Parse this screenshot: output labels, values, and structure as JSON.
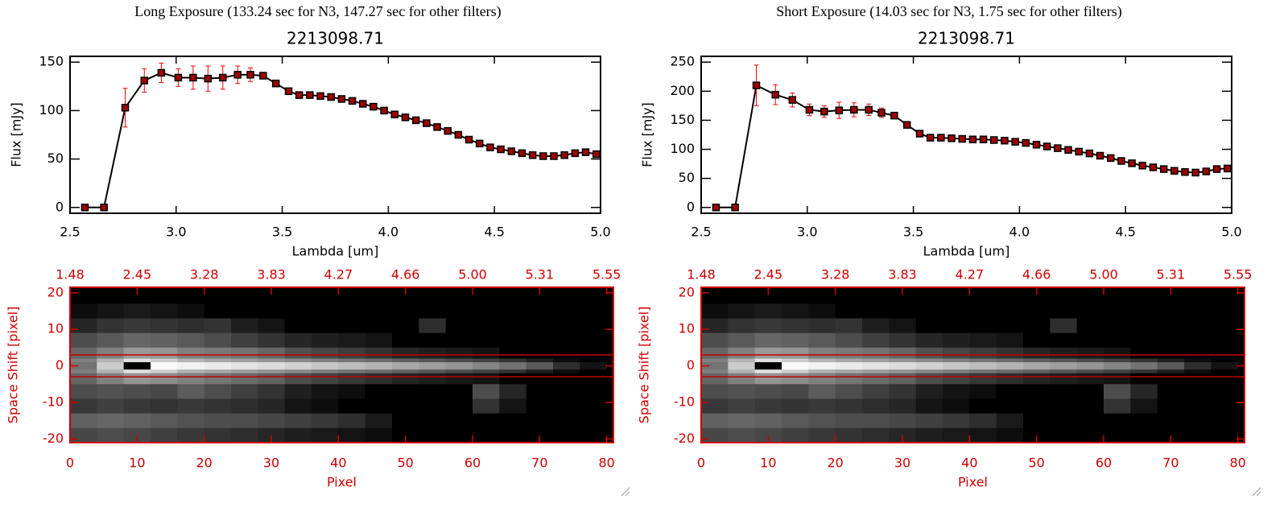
{
  "panel_titles": [
    "Long Exposure (133.24 sec for N3, 147.27 sec for other filters)",
    "Short Exposure (14.03 sec for N3, 1.75 sec for other filters)"
  ],
  "chart_data": [
    {
      "type": "line",
      "title": "2213098.71",
      "xlabel": "Lambda [um]",
      "ylabel": "Flux [mJy]",
      "color": "#000000",
      "marker_color": "#a00000",
      "error_color": "#ff0000",
      "xlim": [
        2.5,
        5.0
      ],
      "xticks": [
        2.5,
        {
          "value": 3,
          "label": "3.0"
        },
        3.5,
        {
          "value": 4,
          "label": "4.0"
        },
        4.5,
        {
          "value": 5,
          "label": "5.0"
        }
      ],
      "ylim": [
        -6,
        156
      ],
      "yticks": [
        0,
        50,
        100,
        150
      ],
      "x": [
        2.57,
        2.66,
        2.76,
        2.85,
        2.93,
        3.01,
        3.08,
        3.15,
        3.22,
        3.29,
        3.35,
        3.41,
        3.47,
        3.53,
        3.58,
        3.63,
        3.68,
        3.73,
        3.78,
        3.83,
        3.88,
        3.93,
        3.98,
        4.03,
        4.08,
        4.13,
        4.18,
        4.23,
        4.28,
        4.33,
        4.38,
        4.43,
        4.48,
        4.53,
        4.58,
        4.63,
        4.68,
        4.73,
        4.78,
        4.83,
        4.88,
        4.93,
        4.98
      ],
      "values": [
        0,
        0,
        103,
        131,
        139,
        134,
        134,
        133,
        134,
        137,
        137,
        136,
        128,
        120,
        116,
        116,
        115,
        114,
        112,
        110,
        107,
        104,
        100,
        96,
        93,
        90,
        87,
        83,
        79,
        75,
        70,
        66,
        62,
        60,
        58,
        56,
        54,
        53,
        53,
        54,
        56,
        57,
        55
      ],
      "errors": [
        0,
        0,
        20,
        12,
        10,
        9,
        12,
        13,
        12,
        9,
        7,
        3,
        2,
        2,
        2,
        2,
        2,
        2,
        2,
        2,
        2,
        2,
        2,
        2,
        2,
        2,
        2,
        2,
        2,
        2,
        2,
        2,
        2,
        2,
        2,
        2,
        2,
        2,
        2,
        2,
        2,
        2,
        2
      ]
    },
    {
      "type": "heatmap",
      "xlabel": "Pixel",
      "ylabel": "Space Shift [pixel]",
      "axis_color": "#d00000",
      "line_color": "#c00000",
      "xlim": [
        0,
        81
      ],
      "xticks": [
        0,
        10,
        20,
        30,
        40,
        50,
        60,
        70,
        80
      ],
      "x2ticks": [
        {
          "value": 0,
          "label": "1.48"
        },
        {
          "value": 10,
          "label": "2.45"
        },
        {
          "value": 20,
          "label": "3.28"
        },
        {
          "value": 30,
          "label": "3.83"
        },
        {
          "value": 40,
          "label": "4.27"
        },
        {
          "value": 50,
          "label": "4.66"
        },
        {
          "value": 60,
          "label": "5.00"
        },
        {
          "value": 70,
          "label": "5.31"
        },
        {
          "value": 80,
          "label": "5.55"
        }
      ],
      "ylim": [
        -21,
        21.5
      ],
      "yticks": [
        -20,
        -10,
        0,
        10,
        20
      ],
      "hlines": [
        3,
        -3
      ],
      "zlim": [
        0,
        100
      ],
      "xbins": [
        0,
        4,
        8,
        12,
        16,
        20,
        24,
        28,
        32,
        36,
        40,
        44,
        48,
        52,
        56,
        60,
        64,
        68,
        72,
        76,
        80
      ],
      "ybins": [
        21.5,
        17,
        13,
        9,
        5,
        2,
        1,
        -1,
        -2,
        -5,
        -9,
        -13,
        -17,
        -21
      ],
      "z": [
        [
          0,
          0,
          0,
          0,
          0,
          0,
          0,
          0,
          0,
          0,
          0,
          0,
          0,
          0,
          0,
          0,
          0,
          0,
          0,
          0
        ],
        [
          5,
          8,
          10,
          8,
          5,
          0,
          0,
          0,
          0,
          0,
          0,
          0,
          0,
          0,
          0,
          0,
          0,
          0,
          0,
          0
        ],
        [
          15,
          20,
          22,
          20,
          18,
          20,
          12,
          8,
          0,
          0,
          0,
          0,
          0,
          18,
          0,
          0,
          0,
          0,
          0,
          0
        ],
        [
          30,
          35,
          40,
          38,
          35,
          30,
          25,
          20,
          15,
          12,
          10,
          8,
          0,
          0,
          0,
          0,
          0,
          0,
          0,
          0
        ],
        [
          40,
          50,
          60,
          58,
          50,
          48,
          45,
          40,
          32,
          28,
          24,
          20,
          15,
          12,
          10,
          8,
          0,
          0,
          0,
          0
        ],
        [
          50,
          70,
          88,
          80,
          70,
          66,
          62,
          58,
          54,
          50,
          46,
          42,
          38,
          34,
          30,
          26,
          20,
          12,
          5,
          0
        ],
        [
          45,
          80,
          0,
          98,
          95,
          92,
          89,
          86,
          82,
          78,
          74,
          70,
          66,
          62,
          58,
          52,
          45,
          35,
          18,
          8
        ],
        [
          50,
          70,
          88,
          80,
          70,
          66,
          62,
          58,
          54,
          50,
          46,
          42,
          38,
          34,
          30,
          26,
          20,
          12,
          5,
          0
        ],
        [
          40,
          50,
          58,
          55,
          50,
          46,
          42,
          38,
          30,
          26,
          22,
          18,
          14,
          12,
          10,
          8,
          0,
          0,
          0,
          0
        ],
        [
          30,
          32,
          30,
          28,
          36,
          30,
          25,
          20,
          12,
          8,
          5,
          0,
          0,
          0,
          0,
          30,
          15,
          0,
          0,
          0
        ],
        [
          22,
          25,
          22,
          20,
          22,
          20,
          18,
          15,
          8,
          5,
          0,
          0,
          0,
          0,
          0,
          20,
          8,
          0,
          0,
          0
        ],
        [
          38,
          40,
          38,
          35,
          32,
          30,
          30,
          28,
          25,
          22,
          18,
          10,
          0,
          0,
          0,
          0,
          0,
          0,
          0,
          0
        ],
        [
          28,
          30,
          28,
          25,
          22,
          20,
          18,
          15,
          12,
          10,
          8,
          5,
          0,
          0,
          0,
          0,
          0,
          0,
          0,
          0
        ]
      ]
    },
    {
      "type": "line",
      "title": "2213098.71",
      "xlabel": "Lambda [um]",
      "ylabel": "Flux [mJy]",
      "color": "#000000",
      "marker_color": "#a00000",
      "error_color": "#ff0000",
      "xlim": [
        2.5,
        5.0
      ],
      "xticks": [
        2.5,
        {
          "value": 3,
          "label": "3.0"
        },
        3.5,
        {
          "value": 4,
          "label": "4.0"
        },
        4.5,
        {
          "value": 5,
          "label": "5.0"
        }
      ],
      "ylim": [
        -10,
        260
      ],
      "yticks": [
        0,
        50,
        100,
        150,
        200,
        250
      ],
      "x": [
        2.57,
        2.66,
        2.76,
        2.85,
        2.93,
        3.01,
        3.08,
        3.15,
        3.22,
        3.29,
        3.35,
        3.41,
        3.47,
        3.53,
        3.58,
        3.63,
        3.68,
        3.73,
        3.78,
        3.83,
        3.88,
        3.93,
        3.98,
        4.03,
        4.08,
        4.13,
        4.18,
        4.23,
        4.28,
        4.33,
        4.38,
        4.43,
        4.48,
        4.53,
        4.58,
        4.63,
        4.68,
        4.73,
        4.78,
        4.83,
        4.88,
        4.93,
        4.98
      ],
      "values": [
        0,
        0,
        210,
        194,
        185,
        168,
        165,
        167,
        168,
        168,
        163,
        158,
        142,
        127,
        120,
        120,
        119,
        118,
        117,
        117,
        116,
        115,
        113,
        111,
        108,
        105,
        102,
        99,
        96,
        93,
        89,
        85,
        80,
        76,
        72,
        69,
        66,
        63,
        61,
        60,
        62,
        66,
        67
      ],
      "errors": [
        0,
        0,
        35,
        17,
        12,
        10,
        10,
        14,
        12,
        10,
        8,
        5,
        3,
        2,
        2,
        2,
        2,
        2,
        2,
        2,
        2,
        2,
        2,
        2,
        2,
        2,
        2,
        2,
        2,
        2,
        2,
        2,
        2,
        2,
        2,
        2,
        2,
        2,
        2,
        2,
        2,
        2,
        2
      ]
    },
    {
      "type": "heatmap",
      "xlabel": "Pixel",
      "ylabel": "Space Shift [pixel]",
      "axis_color": "#d00000",
      "line_color": "#c00000",
      "xlim": [
        0,
        81
      ],
      "xticks": [
        0,
        10,
        20,
        30,
        40,
        50,
        60,
        70,
        80
      ],
      "x2ticks": [
        {
          "value": 0,
          "label": "1.48"
        },
        {
          "value": 10,
          "label": "2.45"
        },
        {
          "value": 20,
          "label": "3.28"
        },
        {
          "value": 30,
          "label": "3.83"
        },
        {
          "value": 40,
          "label": "4.27"
        },
        {
          "value": 50,
          "label": "4.66"
        },
        {
          "value": 60,
          "label": "5.00"
        },
        {
          "value": 70,
          "label": "5.31"
        },
        {
          "value": 80,
          "label": "5.55"
        }
      ],
      "ylim": [
        -21,
        21.5
      ],
      "yticks": [
        -20,
        -10,
        0,
        10,
        20
      ],
      "hlines": [
        3,
        -3
      ],
      "zlim": [
        0,
        100
      ],
      "xbins": [
        0,
        4,
        8,
        12,
        16,
        20,
        24,
        28,
        32,
        36,
        40,
        44,
        48,
        52,
        56,
        60,
        64,
        68,
        72,
        76,
        80
      ],
      "ybins": [
        21.5,
        17,
        13,
        9,
        5,
        2,
        1,
        -1,
        -2,
        -5,
        -9,
        -13,
        -17,
        -21
      ],
      "z": [
        [
          0,
          0,
          0,
          0,
          0,
          0,
          0,
          0,
          0,
          0,
          0,
          0,
          0,
          0,
          0,
          0,
          0,
          0,
          0,
          0
        ],
        [
          5,
          8,
          10,
          8,
          5,
          0,
          0,
          0,
          0,
          0,
          0,
          0,
          0,
          0,
          0,
          0,
          0,
          0,
          0,
          0
        ],
        [
          15,
          20,
          22,
          20,
          18,
          20,
          12,
          8,
          0,
          0,
          0,
          0,
          0,
          18,
          0,
          0,
          0,
          0,
          0,
          0
        ],
        [
          30,
          35,
          40,
          38,
          35,
          30,
          25,
          20,
          15,
          12,
          10,
          8,
          0,
          0,
          0,
          0,
          0,
          0,
          0,
          0
        ],
        [
          40,
          50,
          60,
          58,
          50,
          48,
          45,
          40,
          32,
          28,
          24,
          20,
          15,
          12,
          10,
          8,
          0,
          0,
          0,
          0
        ],
        [
          50,
          70,
          88,
          80,
          70,
          66,
          62,
          58,
          54,
          50,
          46,
          42,
          38,
          34,
          30,
          26,
          20,
          12,
          5,
          0
        ],
        [
          45,
          80,
          0,
          98,
          95,
          92,
          89,
          86,
          82,
          78,
          74,
          70,
          66,
          62,
          58,
          52,
          45,
          35,
          18,
          8
        ],
        [
          50,
          70,
          88,
          80,
          70,
          66,
          62,
          58,
          54,
          50,
          46,
          42,
          38,
          34,
          30,
          26,
          20,
          12,
          5,
          0
        ],
        [
          40,
          50,
          58,
          55,
          50,
          46,
          42,
          38,
          30,
          26,
          22,
          18,
          14,
          12,
          10,
          8,
          0,
          0,
          0,
          0
        ],
        [
          30,
          32,
          30,
          28,
          36,
          30,
          25,
          20,
          12,
          8,
          5,
          0,
          0,
          0,
          0,
          30,
          15,
          0,
          0,
          0
        ],
        [
          22,
          25,
          22,
          20,
          22,
          20,
          18,
          15,
          8,
          5,
          0,
          0,
          0,
          0,
          0,
          20,
          8,
          0,
          0,
          0
        ],
        [
          38,
          40,
          38,
          35,
          32,
          30,
          30,
          28,
          25,
          22,
          18,
          10,
          0,
          0,
          0,
          0,
          0,
          0,
          0,
          0
        ],
        [
          28,
          30,
          28,
          25,
          22,
          20,
          18,
          15,
          12,
          10,
          8,
          5,
          0,
          0,
          0,
          0,
          0,
          0,
          0,
          0
        ]
      ]
    }
  ]
}
